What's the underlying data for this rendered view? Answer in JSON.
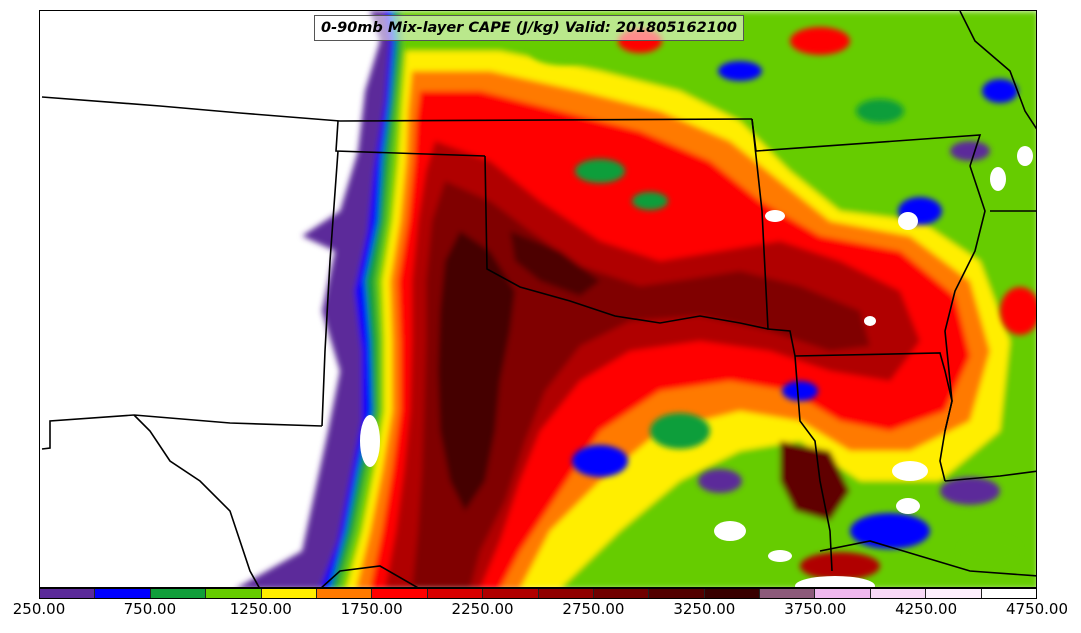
{
  "title": "0-90mb Mix-layer CAPE (J/kg) Valid: 201805162100",
  "colorbar": {
    "colors": [
      "#5b2a9a",
      "#0000ff",
      "#109e3a",
      "#66cc00",
      "#ffee00",
      "#ff7a00",
      "#ff0000",
      "#d80000",
      "#b00000",
      "#900000",
      "#700000",
      "#520000",
      "#380000",
      "#8c5a7a",
      "#f0b8ee",
      "#f8d8f6",
      "#fdeefc",
      "#ffffff"
    ],
    "tick_labels": [
      "250.00",
      "750.00",
      "1250.00",
      "1750.00",
      "2250.00",
      "2750.00",
      "3250.00",
      "3750.00",
      "4250.00",
      "4750.00"
    ]
  },
  "legend_levels": [
    250,
    500,
    750,
    1000,
    1250,
    1500,
    1750,
    2000,
    2250,
    2500,
    2750,
    3000,
    3250,
    3500,
    3750,
    4000,
    4250,
    4500,
    4750
  ]
}
